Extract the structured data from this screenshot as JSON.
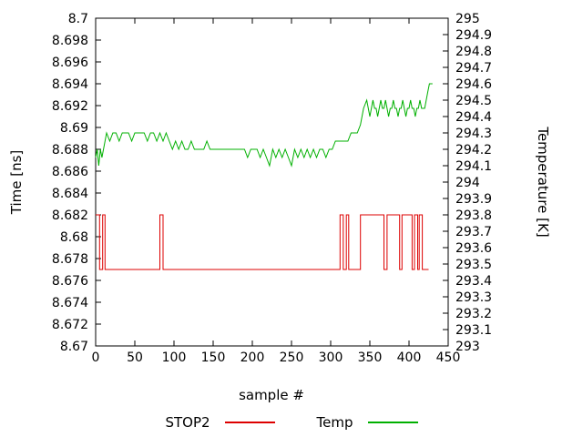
{
  "chart_data": {
    "type": "line",
    "title": "",
    "xlabel": "sample #",
    "ylabel_left": "Time [ns]",
    "ylabel_right": "Temperature [K]",
    "xlim": [
      0,
      450
    ],
    "xtick_step": 50,
    "ylim_left": [
      8.67,
      8.7
    ],
    "ytick_step_left": 0.002,
    "ylim_right": [
      293,
      295
    ],
    "ytick_step_right": 0.1,
    "grid": false,
    "legend_position": "bottom",
    "series": [
      {
        "name": "STOP2",
        "axis": "left",
        "color": "#dd0000",
        "points": [
          [
            0,
            8.682
          ],
          [
            5,
            8.682
          ],
          [
            5,
            8.677
          ],
          [
            9,
            8.677
          ],
          [
            9,
            8.682
          ],
          [
            12,
            8.682
          ],
          [
            12,
            8.677
          ],
          [
            82,
            8.677
          ],
          [
            82,
            8.682
          ],
          [
            86,
            8.682
          ],
          [
            86,
            8.677
          ],
          [
            312,
            8.677
          ],
          [
            312,
            8.682
          ],
          [
            316,
            8.682
          ],
          [
            316,
            8.677
          ],
          [
            320,
            8.677
          ],
          [
            320,
            8.682
          ],
          [
            323,
            8.682
          ],
          [
            323,
            8.677
          ],
          [
            338,
            8.677
          ],
          [
            338,
            8.682
          ],
          [
            368,
            8.682
          ],
          [
            368,
            8.677
          ],
          [
            372,
            8.677
          ],
          [
            372,
            8.682
          ],
          [
            388,
            8.682
          ],
          [
            388,
            8.677
          ],
          [
            391,
            8.677
          ],
          [
            391,
            8.682
          ],
          [
            404,
            8.682
          ],
          [
            404,
            8.677
          ],
          [
            407,
            8.677
          ],
          [
            407,
            8.682
          ],
          [
            411,
            8.682
          ],
          [
            411,
            8.677
          ],
          [
            413,
            8.677
          ],
          [
            413,
            8.682
          ],
          [
            417,
            8.682
          ],
          [
            417,
            8.677
          ],
          [
            425,
            8.677
          ]
        ]
      },
      {
        "name": "Temp",
        "axis": "right",
        "color": "#00b000",
        "points": [
          [
            0,
            294.15
          ],
          [
            2,
            294.2
          ],
          [
            4,
            294.1
          ],
          [
            6,
            294.2
          ],
          [
            8,
            294.15
          ],
          [
            10,
            294.2
          ],
          [
            12,
            294.25
          ],
          [
            14,
            294.3
          ],
          [
            18,
            294.25
          ],
          [
            22,
            294.3
          ],
          [
            26,
            294.3
          ],
          [
            30,
            294.25
          ],
          [
            34,
            294.3
          ],
          [
            38,
            294.3
          ],
          [
            42,
            294.3
          ],
          [
            46,
            294.25
          ],
          [
            50,
            294.3
          ],
          [
            54,
            294.3
          ],
          [
            58,
            294.3
          ],
          [
            62,
            294.3
          ],
          [
            66,
            294.25
          ],
          [
            70,
            294.3
          ],
          [
            74,
            294.3
          ],
          [
            78,
            294.25
          ],
          [
            82,
            294.3
          ],
          [
            86,
            294.25
          ],
          [
            90,
            294.3
          ],
          [
            94,
            294.25
          ],
          [
            98,
            294.2
          ],
          [
            102,
            294.25
          ],
          [
            106,
            294.2
          ],
          [
            110,
            294.25
          ],
          [
            114,
            294.2
          ],
          [
            118,
            294.2
          ],
          [
            122,
            294.25
          ],
          [
            126,
            294.2
          ],
          [
            130,
            294.2
          ],
          [
            134,
            294.2
          ],
          [
            138,
            294.2
          ],
          [
            142,
            294.25
          ],
          [
            146,
            294.2
          ],
          [
            150,
            294.2
          ],
          [
            154,
            294.2
          ],
          [
            158,
            294.2
          ],
          [
            162,
            294.2
          ],
          [
            166,
            294.2
          ],
          [
            170,
            294.2
          ],
          [
            174,
            294.2
          ],
          [
            178,
            294.2
          ],
          [
            182,
            294.2
          ],
          [
            186,
            294.2
          ],
          [
            190,
            294.2
          ],
          [
            194,
            294.15
          ],
          [
            198,
            294.2
          ],
          [
            202,
            294.2
          ],
          [
            206,
            294.2
          ],
          [
            210,
            294.15
          ],
          [
            214,
            294.2
          ],
          [
            218,
            294.15
          ],
          [
            222,
            294.1
          ],
          [
            226,
            294.2
          ],
          [
            230,
            294.15
          ],
          [
            234,
            294.2
          ],
          [
            238,
            294.15
          ],
          [
            242,
            294.2
          ],
          [
            246,
            294.15
          ],
          [
            250,
            294.1
          ],
          [
            254,
            294.2
          ],
          [
            258,
            294.15
          ],
          [
            262,
            294.2
          ],
          [
            266,
            294.15
          ],
          [
            270,
            294.2
          ],
          [
            274,
            294.15
          ],
          [
            278,
            294.2
          ],
          [
            282,
            294.15
          ],
          [
            286,
            294.2
          ],
          [
            290,
            294.2
          ],
          [
            294,
            294.15
          ],
          [
            298,
            294.2
          ],
          [
            302,
            294.2
          ],
          [
            306,
            294.25
          ],
          [
            310,
            294.25
          ],
          [
            314,
            294.25
          ],
          [
            318,
            294.25
          ],
          [
            322,
            294.25
          ],
          [
            326,
            294.3
          ],
          [
            330,
            294.3
          ],
          [
            334,
            294.3
          ],
          [
            338,
            294.35
          ],
          [
            342,
            294.45
          ],
          [
            346,
            294.5
          ],
          [
            348,
            294.45
          ],
          [
            350,
            294.4
          ],
          [
            352,
            294.45
          ],
          [
            354,
            294.5
          ],
          [
            356,
            294.45
          ],
          [
            358,
            294.45
          ],
          [
            360,
            294.4
          ],
          [
            362,
            294.45
          ],
          [
            364,
            294.5
          ],
          [
            366,
            294.45
          ],
          [
            368,
            294.45
          ],
          [
            370,
            294.5
          ],
          [
            372,
            294.45
          ],
          [
            374,
            294.4
          ],
          [
            376,
            294.45
          ],
          [
            378,
            294.45
          ],
          [
            380,
            294.5
          ],
          [
            382,
            294.45
          ],
          [
            384,
            294.45
          ],
          [
            386,
            294.4
          ],
          [
            388,
            294.45
          ],
          [
            390,
            294.45
          ],
          [
            392,
            294.5
          ],
          [
            394,
            294.45
          ],
          [
            396,
            294.4
          ],
          [
            398,
            294.45
          ],
          [
            400,
            294.45
          ],
          [
            402,
            294.5
          ],
          [
            404,
            294.45
          ],
          [
            406,
            294.45
          ],
          [
            408,
            294.4
          ],
          [
            410,
            294.45
          ],
          [
            412,
            294.45
          ],
          [
            414,
            294.5
          ],
          [
            416,
            294.45
          ],
          [
            418,
            294.45
          ],
          [
            420,
            294.45
          ],
          [
            422,
            294.5
          ],
          [
            424,
            294.55
          ],
          [
            426,
            294.6
          ],
          [
            430,
            294.6
          ]
        ]
      }
    ]
  }
}
